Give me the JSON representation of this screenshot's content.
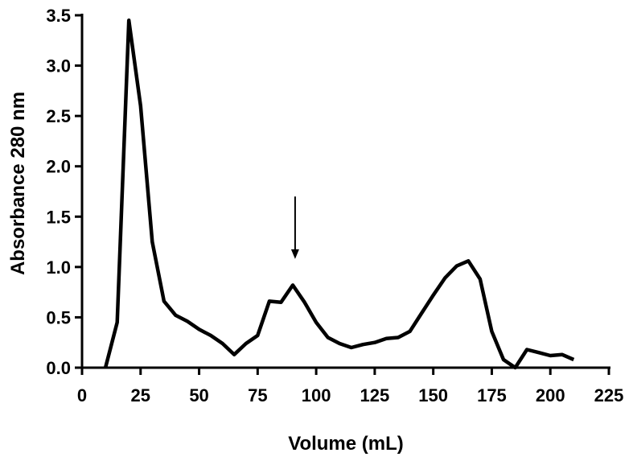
{
  "chart_data": {
    "type": "line",
    "title": "",
    "xlabel": "Volume  (mL)",
    "ylabel": "Absorbance 280 nm",
    "xlim": [
      0,
      225
    ],
    "ylim": [
      0,
      3.5
    ],
    "x_ticks": [
      "0",
      "25",
      "50",
      "75",
      "100",
      "125",
      "150",
      "175",
      "200",
      "225"
    ],
    "y_ticks": [
      "0.0",
      "0.5",
      "1.0",
      "1.5",
      "2.0",
      "2.5",
      "3.0",
      "3.5"
    ],
    "grid": false,
    "legend": "none",
    "line_color": "#000000",
    "series": [
      {
        "x": [
          10,
          15,
          20,
          25,
          30,
          35,
          40,
          45,
          50,
          55,
          60,
          65,
          70,
          75,
          80,
          85,
          90,
          95,
          100,
          105,
          110,
          115,
          120,
          125,
          130,
          135,
          140,
          145,
          150,
          155,
          160,
          165,
          170,
          175,
          180,
          185,
          190,
          195,
          200,
          205,
          210
        ],
        "values": [
          0.0,
          0.45,
          3.45,
          2.6,
          1.25,
          0.66,
          0.52,
          0.46,
          0.38,
          0.32,
          0.24,
          0.13,
          0.24,
          0.32,
          0.66,
          0.65,
          0.82,
          0.65,
          0.45,
          0.3,
          0.24,
          0.2,
          0.23,
          0.25,
          0.29,
          0.3,
          0.36,
          0.54,
          0.72,
          0.89,
          1.01,
          1.06,
          0.88,
          0.36,
          0.08,
          0.0,
          0.18,
          0.15,
          0.12,
          0.13,
          0.08
        ]
      }
    ],
    "annotations": [
      {
        "type": "arrow",
        "x": 91,
        "y_from": 1.7,
        "y_to": 1.08
      }
    ]
  }
}
